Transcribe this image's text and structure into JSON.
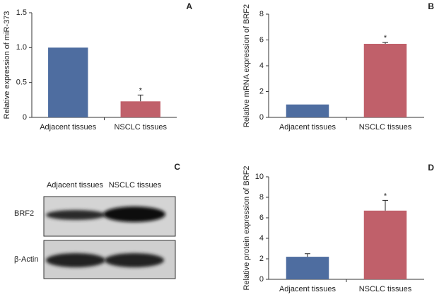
{
  "chart_data": [
    {
      "type": "bar",
      "panel": "A",
      "ylabel": "Relative expression of miR-373",
      "categories": [
        "Adjacent tissues",
        "NSCLC tissues"
      ],
      "series": [
        {
          "colors": [
            "#4e6da0",
            "#c0606a"
          ],
          "values": [
            1,
            0.23
          ],
          "errors": [
            null,
            0.09
          ],
          "significance": [
            null,
            "*"
          ]
        }
      ],
      "ylim": [
        0,
        1.5
      ],
      "yticks": [
        0,
        0.5,
        {
          "value": 1,
          "label": "1.0"
        },
        1.5
      ]
    },
    {
      "type": "bar",
      "panel": "B",
      "ylabel": "Relative mRNA expression of BRF2",
      "categories": [
        "Adjacent tissues",
        "NSCLC tissues"
      ],
      "series": [
        {
          "colors": [
            "#4e6da0",
            "#c0606a"
          ],
          "values": [
            1,
            5.7
          ],
          "errors": [
            null,
            0.1
          ],
          "significance": [
            null,
            "*"
          ]
        }
      ],
      "ylim": [
        0,
        8
      ],
      "yticks": [
        0,
        2,
        4,
        6,
        8
      ]
    },
    {
      "type": "bar",
      "panel": "D",
      "ylabel": "Relative protein expression of BRF2",
      "categories": [
        "Adjacent tissues",
        "NSCLC tissues"
      ],
      "series": [
        {
          "colors": [
            "#4e6da0",
            "#c0606a"
          ],
          "values": [
            2.2,
            6.7
          ],
          "errors": [
            0.3,
            1.0
          ],
          "significance": [
            null,
            "*"
          ]
        }
      ],
      "ylim": [
        0,
        10
      ],
      "yticks": [
        0,
        2,
        4,
        6,
        8,
        10
      ]
    }
  ],
  "blot": {
    "panel": "C",
    "columns": [
      "Adjacent tissues",
      "NSCLC tissues"
    ],
    "rows": [
      "BRF2",
      "β-Actin"
    ]
  }
}
